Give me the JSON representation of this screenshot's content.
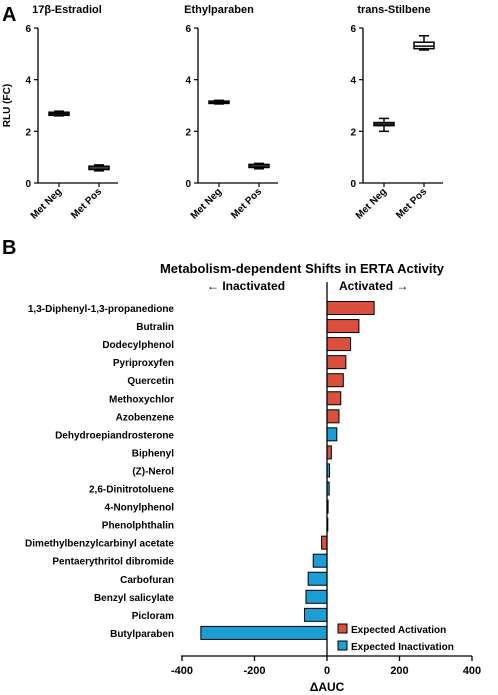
{
  "panel_a_letter": "A",
  "panel_b_letter": "B",
  "chart_data": [
    {
      "type": "box",
      "title": "17β-Estradiol",
      "ylabel": "RLU (FC)",
      "ylim": [
        0,
        6
      ],
      "yticks": [
        0,
        2,
        4,
        6
      ],
      "categories": [
        "Met Neg",
        "Met Pos"
      ],
      "boxes": [
        {
          "min": 2.6,
          "q1": 2.62,
          "median": 2.68,
          "q3": 2.74,
          "max": 2.78
        },
        {
          "min": 0.47,
          "q1": 0.52,
          "median": 0.58,
          "q3": 0.65,
          "max": 0.7
        }
      ]
    },
    {
      "type": "box",
      "title": "Ethylparaben",
      "ylabel": "",
      "ylim": [
        0,
        6
      ],
      "yticks": [
        0,
        2,
        4,
        6
      ],
      "categories": [
        "Met Neg",
        "Met Pos"
      ],
      "boxes": [
        {
          "min": 3.06,
          "q1": 3.08,
          "median": 3.12,
          "q3": 3.17,
          "max": 3.2
        },
        {
          "min": 0.55,
          "q1": 0.6,
          "median": 0.66,
          "q3": 0.72,
          "max": 0.76
        }
      ]
    },
    {
      "type": "box",
      "title": "trans-Stilbene",
      "ylabel": "",
      "ylim": [
        0,
        6
      ],
      "yticks": [
        0,
        2,
        4,
        6
      ],
      "categories": [
        "Met Neg",
        "Met Pos"
      ],
      "boxes": [
        {
          "min": 2.0,
          "q1": 2.22,
          "median": 2.28,
          "q3": 2.34,
          "max": 2.5
        },
        {
          "min": 5.15,
          "q1": 5.2,
          "median": 5.3,
          "q3": 5.45,
          "max": 5.7
        }
      ]
    },
    {
      "type": "bar",
      "orientation": "horizontal",
      "title": "Metabolism-dependent Shifts in ERTA Activity",
      "xlabel": "ΔAUC",
      "xlim": [
        -400,
        400
      ],
      "xticks": [
        -400,
        -200,
        0,
        200,
        400
      ],
      "left_annotation": "← Inactivated",
      "right_annotation": "Activated →",
      "categories": [
        "1,3-Diphenyl-1,3-propanedione",
        "Butralin",
        "Dodecylphenol",
        "Pyriproxyfen",
        "Quercetin",
        "Methoxychlor",
        "Azobenzene",
        "Dehydroepiandrosterone",
        "Biphenyl",
        "(Z)-Nerol",
        "2,6-Dinitrotoluene",
        "4-Nonylphenol",
        "Phenolphthalin",
        "Dimethylbenzylcarbinyl acetate",
        "Pentaerythritol dibromide",
        "Carbofuran",
        "Benzyl salicylate",
        "Picloram",
        "Butylparaben"
      ],
      "values": [
        130,
        88,
        65,
        52,
        45,
        38,
        33,
        27,
        12,
        7,
        6,
        3,
        1,
        -15,
        -38,
        -52,
        -58,
        -62,
        -348
      ],
      "groups": [
        "Expected Activation",
        "Expected Activation",
        "Expected Activation",
        "Expected Activation",
        "Expected Activation",
        "Expected Activation",
        "Expected Activation",
        "Expected Inactivation",
        "Expected Activation",
        "Expected Inactivation",
        "Expected Inactivation",
        "Expected Activation",
        "Expected Inactivation",
        "Expected Activation",
        "Expected Inactivation",
        "Expected Inactivation",
        "Expected Inactivation",
        "Expected Inactivation",
        "Expected Inactivation"
      ],
      "legend": [
        {
          "name": "Expected Activation",
          "color": "#d9503f"
        },
        {
          "name": "Expected Inactivation",
          "color": "#1b9ed4"
        }
      ],
      "legend_position": "bottom-right",
      "grid": false
    }
  ]
}
